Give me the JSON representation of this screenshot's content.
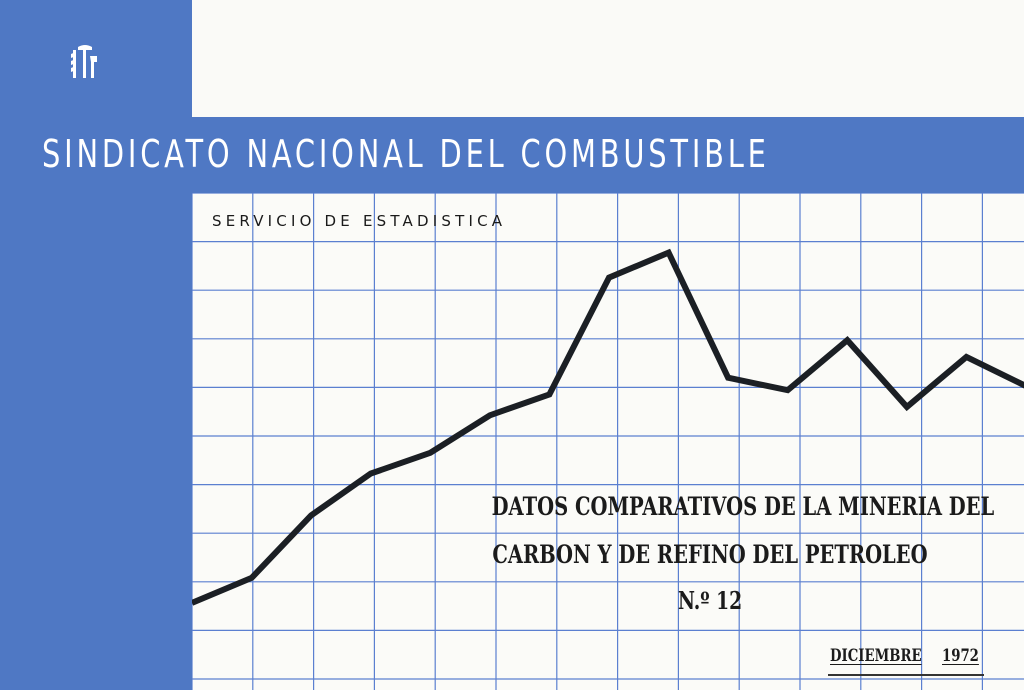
{
  "header": {
    "organization": "SINDICATO NACIONAL DEL COMBUSTIBLE",
    "department": "SERVICIO DE ESTADISTICA"
  },
  "publication": {
    "title_line1": "DATOS COMPARATIVOS DE LA MINERIA DEL",
    "title_line2": "CARBON Y DE REFINO DEL PETROLEO",
    "issue": "N.º 12",
    "month": "DICIEMBRE",
    "year": "1972"
  },
  "colors": {
    "blue": "#4f78c4",
    "paper": "#fbfbf8",
    "grid": "#5b7fd0",
    "line": "#1b1f24"
  },
  "decorative_line": {
    "points": [
      [
        0,
        0.12
      ],
      [
        1,
        0.18
      ],
      [
        2,
        0.33
      ],
      [
        3,
        0.43
      ],
      [
        4,
        0.48
      ],
      [
        5,
        0.57
      ],
      [
        6,
        0.62
      ],
      [
        7,
        0.9
      ],
      [
        8,
        0.96
      ],
      [
        9,
        0.66
      ],
      [
        10,
        0.63
      ],
      [
        11,
        0.75
      ],
      [
        12,
        0.59
      ],
      [
        13,
        0.71
      ],
      [
        14,
        0.64
      ]
    ]
  },
  "icons": {
    "logo": "sindicato-emblem-icon"
  }
}
